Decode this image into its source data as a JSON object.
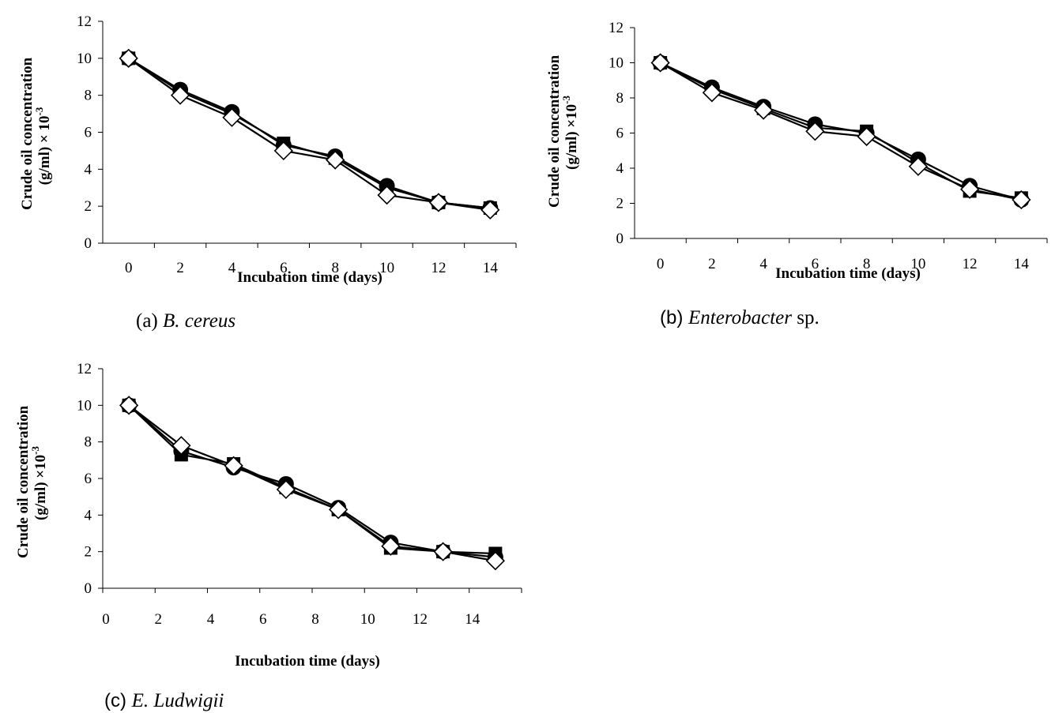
{
  "chart_data": [
    {
      "type": "line",
      "caption_prefix": "(a) ",
      "caption_name": "B. cereus",
      "caption_suffix": "",
      "xlabel": "Incubation  time (days)",
      "ylabel_line1": "Crude oil concentration",
      "ylabel_line2": "(g/ml)     × 10",
      "ylabel_sup": "-3",
      "xticks": [
        "0",
        "2",
        "4",
        "6",
        "8",
        "10",
        "12",
        "14"
      ],
      "yticks": [
        "0",
        "2",
        "4",
        "6",
        "8",
        "10",
        "12"
      ],
      "ylim": [
        0,
        12
      ],
      "categories": [
        "0",
        "2",
        "4",
        "6",
        "8",
        "10",
        "12",
        "14"
      ],
      "series": [
        {
          "marker": "circle",
          "values": [
            10.0,
            8.3,
            7.1,
            5.3,
            4.7,
            3.1,
            2.2,
            1.9
          ]
        },
        {
          "marker": "square",
          "values": [
            10.0,
            8.2,
            7.0,
            5.4,
            4.6,
            3.0,
            2.2,
            1.9
          ]
        },
        {
          "marker": "diamond",
          "values": [
            10.0,
            8.0,
            6.8,
            5.0,
            4.5,
            2.6,
            2.2,
            1.8
          ]
        }
      ]
    },
    {
      "type": "line",
      "caption_prefix": "(b) ",
      "caption_name": "Enterobacter",
      "caption_suffix": " sp.",
      "xlabel": "Incubation   time (days)",
      "ylabel_line1": "Crude oil concentration",
      "ylabel_line2": "(g/ml) ×10",
      "ylabel_sup": "-3",
      "xticks": [
        "0",
        "2",
        "4",
        "6",
        "8",
        "10",
        "12",
        "14"
      ],
      "yticks": [
        "0",
        "2",
        "4",
        "6",
        "8",
        "10",
        "12"
      ],
      "ylim": [
        0,
        12
      ],
      "categories": [
        "0",
        "2",
        "4",
        "6",
        "8",
        "10",
        "12",
        "14"
      ],
      "series": [
        {
          "marker": "circle",
          "values": [
            10.0,
            8.6,
            7.5,
            6.5,
            6.0,
            4.5,
            3.0,
            2.2
          ]
        },
        {
          "marker": "square",
          "values": [
            10.0,
            8.5,
            7.4,
            6.3,
            6.1,
            4.3,
            2.7,
            2.3
          ]
        },
        {
          "marker": "diamond",
          "values": [
            10.0,
            8.3,
            7.3,
            6.1,
            5.8,
            4.1,
            2.8,
            2.2
          ]
        }
      ]
    },
    {
      "type": "line",
      "caption_prefix": "(c) ",
      "caption_name": "E. Ludwigii",
      "caption_suffix": "",
      "xlabel": "Incubation  time (days)",
      "ylabel_line1": "Crude oil concentration",
      "ylabel_line2": "(g/ml) ×10",
      "ylabel_sup": "-3",
      "xticks": [
        "0",
        "2",
        "4",
        "6",
        "8",
        "10",
        "12",
        "14"
      ],
      "yticks": [
        "0",
        "2",
        "4",
        "6",
        "8",
        "10",
        "12"
      ],
      "ylim": [
        0,
        12
      ],
      "xlim": [
        0,
        16
      ],
      "x": [
        1,
        3,
        5,
        7,
        9,
        11,
        13,
        15
      ],
      "series": [
        {
          "marker": "circle",
          "values": [
            10.0,
            7.5,
            6.6,
            5.7,
            4.4,
            2.5,
            2.0,
            1.7
          ]
        },
        {
          "marker": "square",
          "values": [
            10.0,
            7.3,
            6.8,
            5.5,
            4.3,
            2.2,
            2.0,
            1.9
          ]
        },
        {
          "marker": "diamond",
          "values": [
            10.0,
            7.8,
            6.7,
            5.4,
            4.3,
            2.3,
            2.0,
            1.5
          ]
        }
      ]
    }
  ]
}
